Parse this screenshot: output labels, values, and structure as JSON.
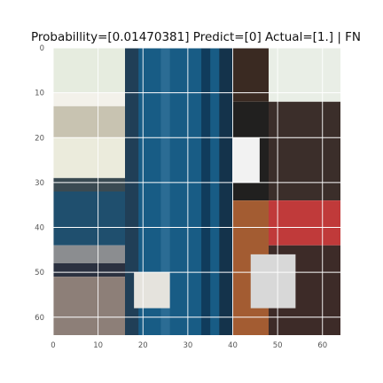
{
  "chart_data": {
    "type": "heatmap",
    "title": "Probabillity=[0.01470381] Predict=[0] Actual=[1.] | FN",
    "xlabel": "",
    "ylabel": "",
    "xlim": [
      0,
      64
    ],
    "ylim": [
      64,
      0
    ],
    "grid": true,
    "x_ticks": [
      "0",
      "10",
      "20",
      "30",
      "40",
      "50",
      "60"
    ],
    "y_ticks": [
      "0",
      "10",
      "20",
      "30",
      "40",
      "50",
      "60"
    ],
    "image_regions": [
      {
        "x": [
          0,
          16
        ],
        "y": [
          0,
          10
        ],
        "color": "#e6ecdf"
      },
      {
        "x": [
          0,
          16
        ],
        "y": [
          10,
          13
        ],
        "color": "#f3f1ea"
      },
      {
        "x": [
          0,
          16
        ],
        "y": [
          13,
          20
        ],
        "color": "#c8c3b1"
      },
      {
        "x": [
          0,
          16
        ],
        "y": [
          20,
          29
        ],
        "color": "#ebebdc"
      },
      {
        "x": [
          0,
          16
        ],
        "y": [
          29,
          32
        ],
        "color": "#3a4a52"
      },
      {
        "x": [
          0,
          16
        ],
        "y": [
          32,
          44
        ],
        "color": "#1f4f6e"
      },
      {
        "x": [
          0,
          16
        ],
        "y": [
          44,
          48
        ],
        "color": "#8b8d90"
      },
      {
        "x": [
          0,
          16
        ],
        "y": [
          48,
          51
        ],
        "color": "#2b3140"
      },
      {
        "x": [
          0,
          16
        ],
        "y": [
          51,
          64
        ],
        "color": "#8d7f78"
      },
      {
        "x": [
          16,
          40
        ],
        "y": [
          0,
          64
        ],
        "color": "#185c85"
      },
      {
        "x": [
          16,
          19
        ],
        "y": [
          0,
          64
        ],
        "color": "#203f57"
      },
      {
        "x": [
          24,
          26
        ],
        "y": [
          0,
          64
        ],
        "color": "#2b6c94"
      },
      {
        "x": [
          33,
          35
        ],
        "y": [
          0,
          64
        ],
        "color": "#103c5c"
      },
      {
        "x": [
          37,
          40
        ],
        "y": [
          0,
          64
        ],
        "color": "#14334b"
      },
      {
        "x": [
          40,
          48
        ],
        "y": [
          0,
          12
        ],
        "color": "#3a2a22"
      },
      {
        "x": [
          40,
          48
        ],
        "y": [
          12,
          34
        ],
        "color": "#21201f"
      },
      {
        "x": [
          40,
          46
        ],
        "y": [
          20,
          30
        ],
        "color": "#f2f2f2"
      },
      {
        "x": [
          40,
          48
        ],
        "y": [
          34,
          64
        ],
        "color": "#a35c32"
      },
      {
        "x": [
          48,
          64
        ],
        "y": [
          0,
          12
        ],
        "color": "#e9eee6"
      },
      {
        "x": [
          48,
          64
        ],
        "y": [
          12,
          34
        ],
        "color": "#3b2e2a"
      },
      {
        "x": [
          48,
          64
        ],
        "y": [
          34,
          44
        ],
        "color": "#c03a3a"
      },
      {
        "x": [
          48,
          64
        ],
        "y": [
          44,
          64
        ],
        "color": "#3d2b28"
      },
      {
        "x": [
          44,
          54
        ],
        "y": [
          46,
          58
        ],
        "color": "#d8d8d8"
      },
      {
        "x": [
          18,
          26
        ],
        "y": [
          50,
          58
        ],
        "color": "#e5e3dd"
      }
    ]
  }
}
